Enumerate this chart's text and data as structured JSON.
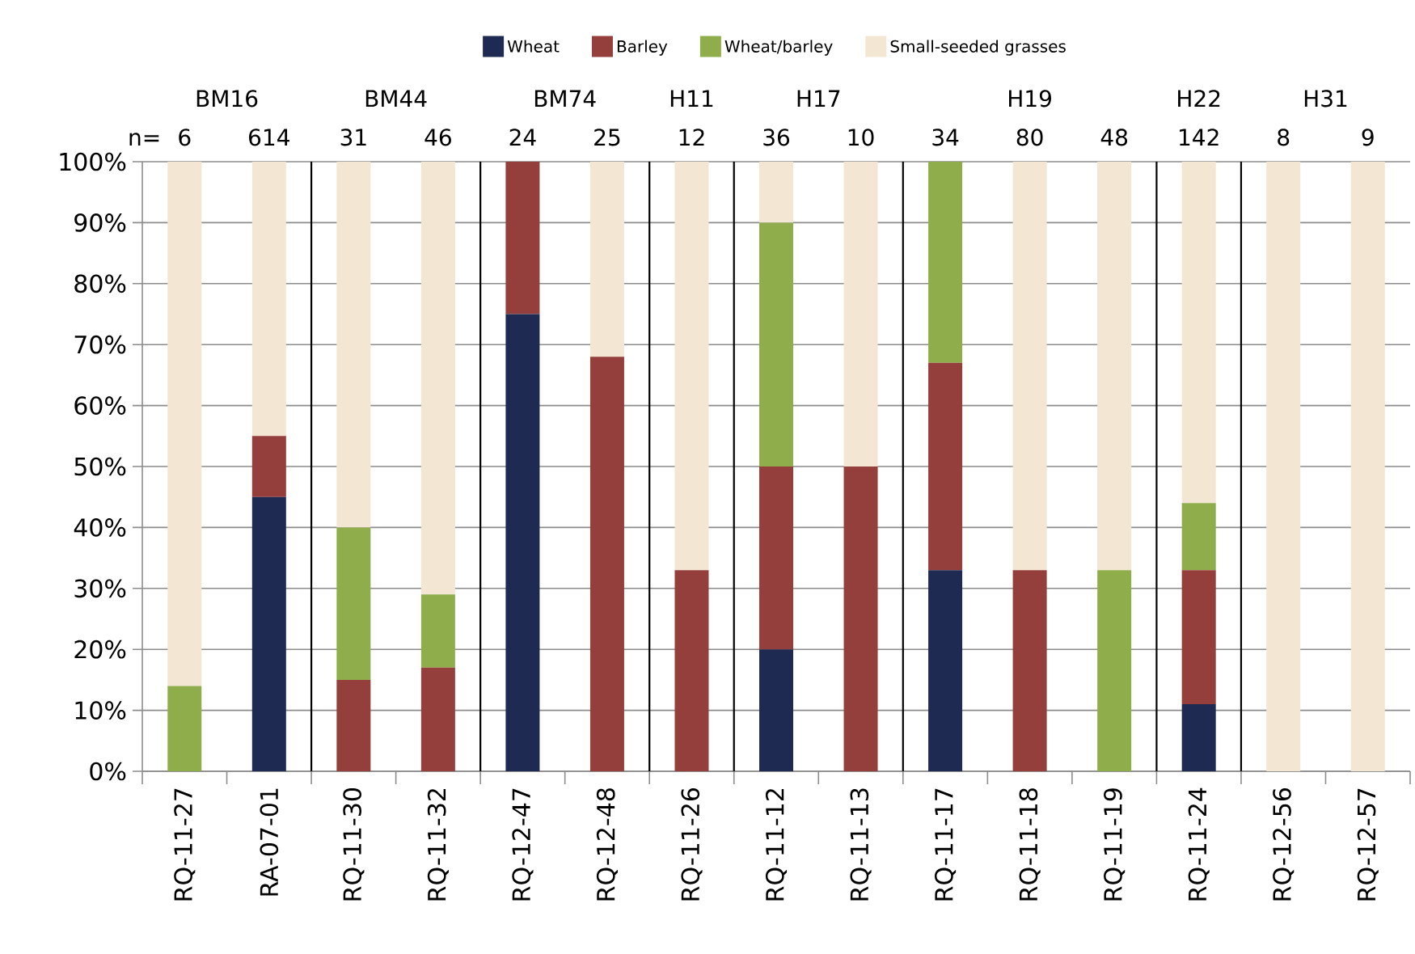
{
  "chart_data": {
    "type": "bar",
    "stacked": true,
    "categories": [
      "RQ-11-27",
      "RA-07-01",
      "RQ-11-30",
      "RQ-11-32",
      "RQ-12-47",
      "RQ-12-48",
      "RQ-11-26",
      "RQ-11-12",
      "RQ-11-13",
      "RQ-11-17",
      "RQ-11-18",
      "RQ-11-19",
      "RQ-11-24",
      "RQ-12-56",
      "RQ-12-57"
    ],
    "series": [
      {
        "name": "Wheat",
        "color": "#1f2a52",
        "values": [
          0,
          45,
          0,
          0,
          75,
          0,
          0,
          20,
          0,
          33,
          0,
          0,
          11,
          0,
          0
        ]
      },
      {
        "name": "Barley",
        "color": "#943f3c",
        "values": [
          0,
          10,
          15,
          17,
          25,
          68,
          33,
          30,
          50,
          34,
          33,
          0,
          22,
          0,
          0
        ]
      },
      {
        "name": "Wheat/barley",
        "color": "#8fae4b",
        "values": [
          14,
          0,
          25,
          12,
          0,
          0,
          0,
          40,
          0,
          33,
          0,
          33,
          11,
          0,
          0
        ]
      },
      {
        "name": "Small-seeded grasses",
        "color": "#f3e6d3",
        "values": [
          86,
          45,
          60,
          71,
          0,
          32,
          67,
          10,
          50,
          0,
          67,
          67,
          56,
          100,
          100
        ]
      }
    ],
    "annotations": [
      "n=",
      "6",
      "614",
      "31",
      "46",
      "24",
      "25",
      "12",
      "36",
      "10",
      "34",
      "80",
      "48",
      "142",
      "8",
      "9",
      "BM16",
      "BM44",
      "BM74",
      "H11",
      "H17",
      "H19",
      "H22",
      "H31"
    ],
    "ylim": [
      0,
      100
    ],
    "yticks": [
      {
        "value": 0,
        "label": "0%"
      },
      {
        "value": 10,
        "label": "10%"
      },
      {
        "value": 20,
        "label": "20%"
      },
      {
        "value": 30,
        "label": "30%"
      },
      {
        "value": 40,
        "label": "40%"
      },
      {
        "value": 50,
        "label": "50%"
      },
      {
        "value": 60,
        "label": "60%"
      },
      {
        "value": 70,
        "label": "70%"
      },
      {
        "value": 80,
        "label": "80%"
      },
      {
        "value": 90,
        "label": "90%"
      },
      {
        "value": 100,
        "label": "100%"
      }
    ],
    "grid": "y",
    "legend": "top"
  }
}
